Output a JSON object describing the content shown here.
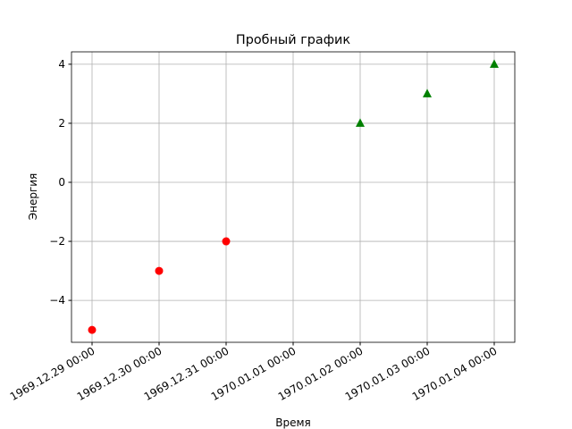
{
  "chart_data": {
    "type": "scatter",
    "title": "Пробный график",
    "x_label": "Время",
    "y_label": "Энергия",
    "categories": [
      "1969.12.29 00:00",
      "1969.12.30 00:00",
      "1969.12.31 00:00",
      "1970.01.01 00:00",
      "1970.01.02 00:00",
      "1970.01.03 00:00",
      "1970.01.04 00:00"
    ],
    "series": [
      {
        "color": "#ff0000",
        "marker": "circle",
        "values": [
          -5,
          -3,
          -2,
          null,
          null,
          null,
          null
        ]
      },
      {
        "color": "#008000",
        "marker": "triangle",
        "values": [
          null,
          null,
          null,
          null,
          2,
          3,
          4
        ]
      }
    ],
    "ylim": [
      -5.42,
      4.42
    ],
    "yticks": [
      {
        "value": -4,
        "label": "−4"
      },
      {
        "value": -2,
        "label": "−2"
      },
      0,
      2,
      4
    ],
    "grid": true
  }
}
